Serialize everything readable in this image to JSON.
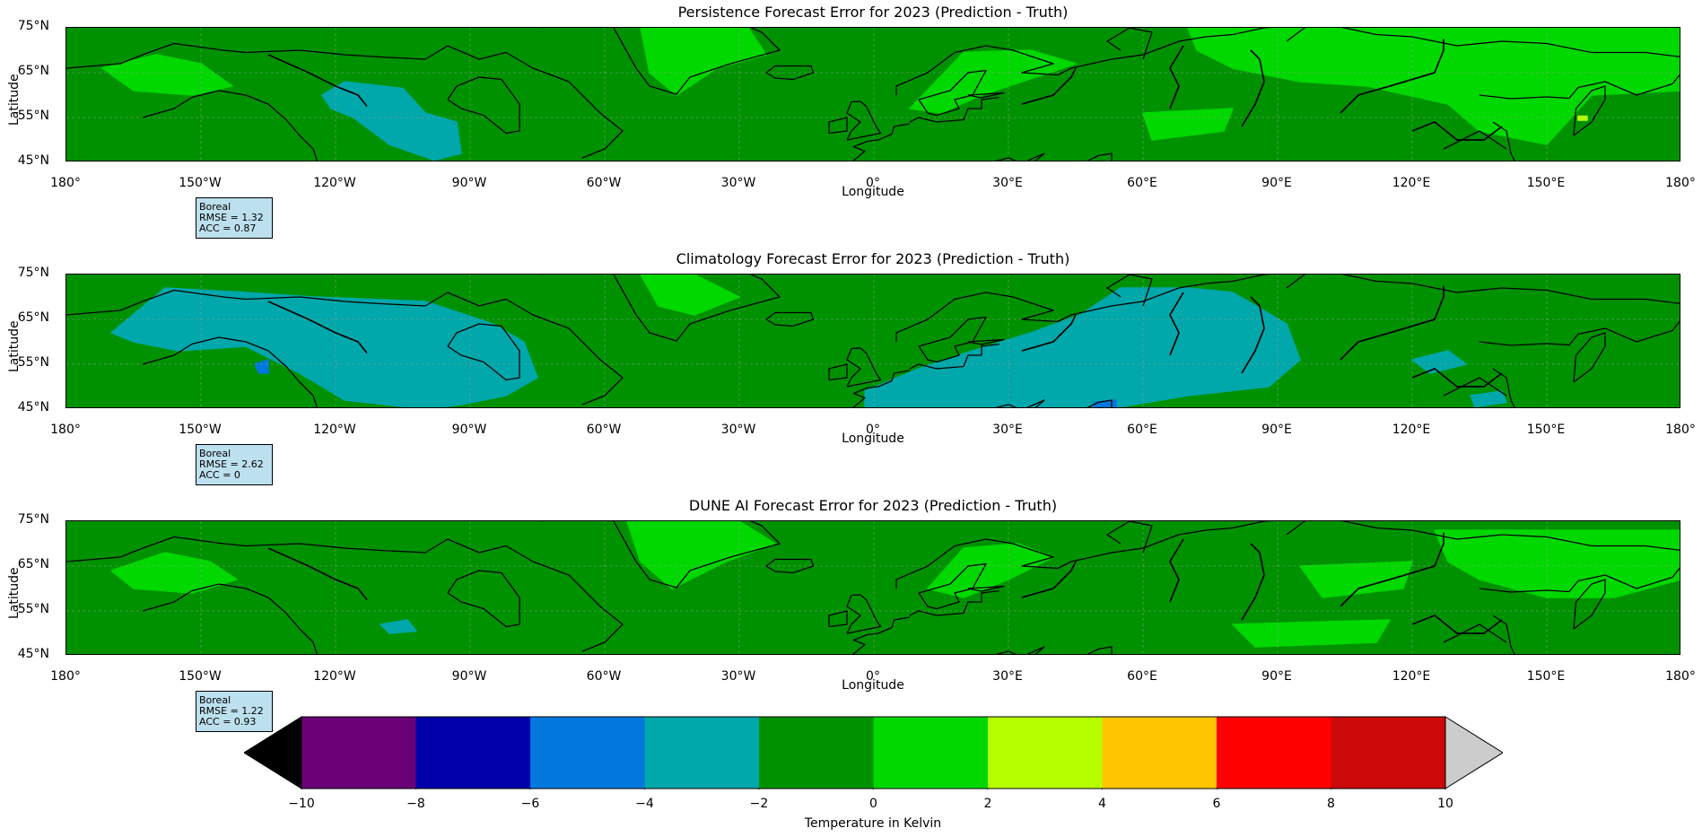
{
  "panels": [
    {
      "title": "Persistence Forecast Error for 2023 (Prediction - Truth)",
      "region": "Boreal",
      "rmse": "RMSE = 1.32",
      "acc": "ACC = 0.87",
      "variant": "persistence"
    },
    {
      "title": "Climatology Forecast Error for 2023 (Prediction - Truth)",
      "region": "Boreal",
      "rmse": "RMSE = 2.62",
      "acc": "ACC = 0",
      "variant": "climatology"
    },
    {
      "title": "DUNE AI Forecast Error for 2023 (Prediction - Truth)",
      "region": "Boreal",
      "rmse": "RMSE = 1.22",
      "acc": "ACC = 0.93",
      "variant": "dune"
    }
  ],
  "axes": {
    "ylabel": "Latitude",
    "xlabel": "Longitude",
    "yticks": [
      "75°N",
      "65°N",
      "55°N",
      "45°N"
    ],
    "xticks": [
      "180°",
      "150°W",
      "120°W",
      "90°W",
      "60°W",
      "30°W",
      "0°",
      "30°E",
      "60°E",
      "90°E",
      "120°E",
      "150°E",
      "180°"
    ],
    "lat_range": [
      45,
      75
    ],
    "lon_range": [
      -180,
      180
    ]
  },
  "colorbar": {
    "label": "Temperature in Kelvin",
    "ticks": [
      "−10",
      "−8",
      "−6",
      "−4",
      "−2",
      "0",
      "2",
      "4",
      "6",
      "8",
      "10"
    ],
    "bins": [
      {
        "from": -10,
        "to": -8,
        "color": "#6a0076"
      },
      {
        "from": -8,
        "to": -6,
        "color": "#0000aa"
      },
      {
        "from": -6,
        "to": -4,
        "color": "#0078dd"
      },
      {
        "from": -4,
        "to": -2,
        "color": "#00a7ab"
      },
      {
        "from": -2,
        "to": 0,
        "color": "#009100"
      },
      {
        "from": 0,
        "to": 2,
        "color": "#00d800"
      },
      {
        "from": 2,
        "to": 4,
        "color": "#b6ff00"
      },
      {
        "from": 4,
        "to": 6,
        "color": "#ffc600"
      },
      {
        "from": 6,
        "to": 8,
        "color": "#ff0000"
      },
      {
        "from": 8,
        "to": 10,
        "color": "#cc0a0a"
      }
    ],
    "under_color": "#000000",
    "over_color": "#cccccc"
  }
}
